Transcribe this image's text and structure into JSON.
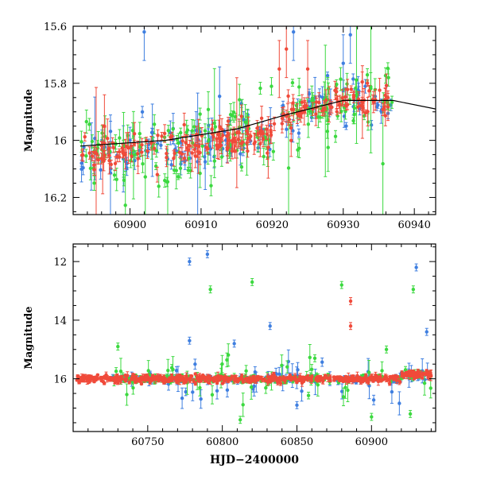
{
  "chart_data": [
    {
      "type": "scatter",
      "title": "",
      "ylabel": "Magnitude",
      "xlabel": "",
      "xlim": [
        60892,
        60943
      ],
      "ylim": [
        16.26,
        15.6
      ],
      "y_inverted": true,
      "x_ticks": [
        60900,
        60910,
        60920,
        60930,
        60940
      ],
      "x_tick_labels": [
        "60900",
        "60910",
        "60920",
        "60930",
        "60940"
      ],
      "y_ticks": [
        15.6,
        15.8,
        16.0,
        16.2
      ],
      "y_tick_labels": [
        "15.6",
        "15.8",
        "16",
        "16.2"
      ],
      "error_bars": true,
      "trend_line": {
        "x": [
          60893,
          60905,
          60915,
          60922,
          60930,
          60937,
          60943
        ],
        "y": [
          16.02,
          16.0,
          15.96,
          15.91,
          15.86,
          15.86,
          15.89
        ]
      },
      "series": [
        {
          "color": "#3f7fe0",
          "approx_points": 140,
          "scatter_mag": 0.04,
          "outlier_rate": 0.08
        },
        {
          "color": "#3cd940",
          "approx_points": 180,
          "scatter_mag": 0.06,
          "outlier_rate": 0.12
        },
        {
          "color": "#f04a3a",
          "approx_points": 220,
          "scatter_mag": 0.03,
          "outlier_rate": 0.05
        }
      ],
      "highlight_points": [
        {
          "x": 60902,
          "y": 15.62,
          "series": 0
        },
        {
          "x": 60922,
          "y": 15.68,
          "series": 2
        },
        {
          "x": 60923,
          "y": 15.62,
          "series": 0
        },
        {
          "x": 60925,
          "y": 15.75,
          "series": 2
        },
        {
          "x": 60931,
          "y": 15.63,
          "series": 0
        },
        {
          "x": 60930,
          "y": 15.73,
          "series": 0
        },
        {
          "x": 60921,
          "y": 15.75,
          "series": 2
        }
      ]
    },
    {
      "type": "scatter",
      "title": "",
      "ylabel": "Magnitude",
      "xlabel": "HJD−2400000",
      "xlim": [
        60700,
        60943
      ],
      "ylim": [
        17.8,
        11.4
      ],
      "y_inverted": true,
      "x_ticks": [
        60750,
        60800,
        60850,
        60900
      ],
      "x_tick_labels": [
        "60750",
        "60800",
        "60850",
        "60900"
      ],
      "y_ticks": [
        12,
        14,
        16
      ],
      "y_tick_labels": [
        "12",
        "14",
        "16"
      ],
      "error_bars": true,
      "baseline": 16.0,
      "series": [
        {
          "color": "#3f7fe0",
          "approx_points": 200
        },
        {
          "color": "#3cd940",
          "approx_points": 260
        },
        {
          "color": "#f04a3a",
          "approx_points": 500
        }
      ],
      "outliers": [
        {
          "x": 60778,
          "y": 12.0,
          "series": 0
        },
        {
          "x": 60790,
          "y": 11.75,
          "series": 0
        },
        {
          "x": 60792,
          "y": 12.95,
          "series": 1
        },
        {
          "x": 60820,
          "y": 12.7,
          "series": 1
        },
        {
          "x": 60832,
          "y": 14.2,
          "series": 0
        },
        {
          "x": 60730,
          "y": 14.9,
          "series": 1
        },
        {
          "x": 60778,
          "y": 14.7,
          "series": 0
        },
        {
          "x": 60808,
          "y": 14.8,
          "series": 0
        },
        {
          "x": 60880,
          "y": 12.8,
          "series": 1
        },
        {
          "x": 60886,
          "y": 13.35,
          "series": 2
        },
        {
          "x": 60886,
          "y": 14.2,
          "series": 2
        },
        {
          "x": 60930,
          "y": 12.2,
          "series": 0
        },
        {
          "x": 60928,
          "y": 12.95,
          "series": 1
        },
        {
          "x": 60937,
          "y": 14.4,
          "series": 0
        },
        {
          "x": 60910,
          "y": 15.0,
          "series": 1
        },
        {
          "x": 60862,
          "y": 15.3,
          "series": 1
        },
        {
          "x": 60812,
          "y": 17.4,
          "series": 1
        },
        {
          "x": 60900,
          "y": 17.3,
          "series": 1
        },
        {
          "x": 60926,
          "y": 17.2,
          "series": 1
        },
        {
          "x": 60850,
          "y": 16.9,
          "series": 0
        }
      ]
    }
  ]
}
